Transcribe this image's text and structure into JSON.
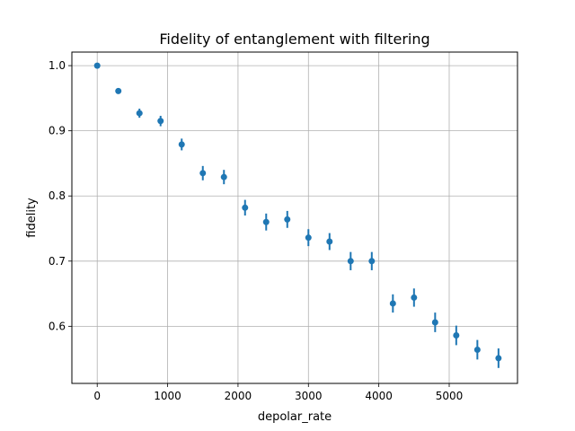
{
  "chart_data": {
    "type": "scatter",
    "title": "Fidelity of entanglement with filtering",
    "xlabel": "depolar_rate",
    "ylabel": "fidelity",
    "xlim": [
      -360,
      5970
    ],
    "ylim": [
      0.5123,
      1.0208
    ],
    "xticks": [
      0,
      1000,
      2000,
      3000,
      4000,
      5000
    ],
    "xtick_labels": [
      "0",
      "1000",
      "2000",
      "3000",
      "4000",
      "5000"
    ],
    "yticks": [
      0.6,
      0.7,
      0.8,
      0.9,
      1.0
    ],
    "ytick_labels": [
      "0.6",
      "0.7",
      "0.8",
      "0.9",
      "1.0"
    ],
    "grid": true,
    "color": "#1f77b4",
    "series": [
      {
        "x": [
          0,
          300,
          600,
          900,
          1200,
          1500,
          1800,
          2100,
          2400,
          2700,
          3000,
          3300,
          3600,
          3900,
          4200,
          4500,
          4800,
          5100,
          5400,
          5700
        ],
        "y": [
          1.0,
          0.961,
          0.927,
          0.915,
          0.879,
          0.835,
          0.829,
          0.782,
          0.76,
          0.764,
          0.736,
          0.73,
          0.7,
          0.7,
          0.635,
          0.644,
          0.606,
          0.586,
          0.564,
          0.551
        ],
        "yerr": [
          0.0,
          0.004,
          0.007,
          0.008,
          0.009,
          0.011,
          0.011,
          0.012,
          0.013,
          0.013,
          0.013,
          0.013,
          0.014,
          0.014,
          0.014,
          0.014,
          0.015,
          0.015,
          0.015,
          0.015
        ]
      }
    ]
  }
}
